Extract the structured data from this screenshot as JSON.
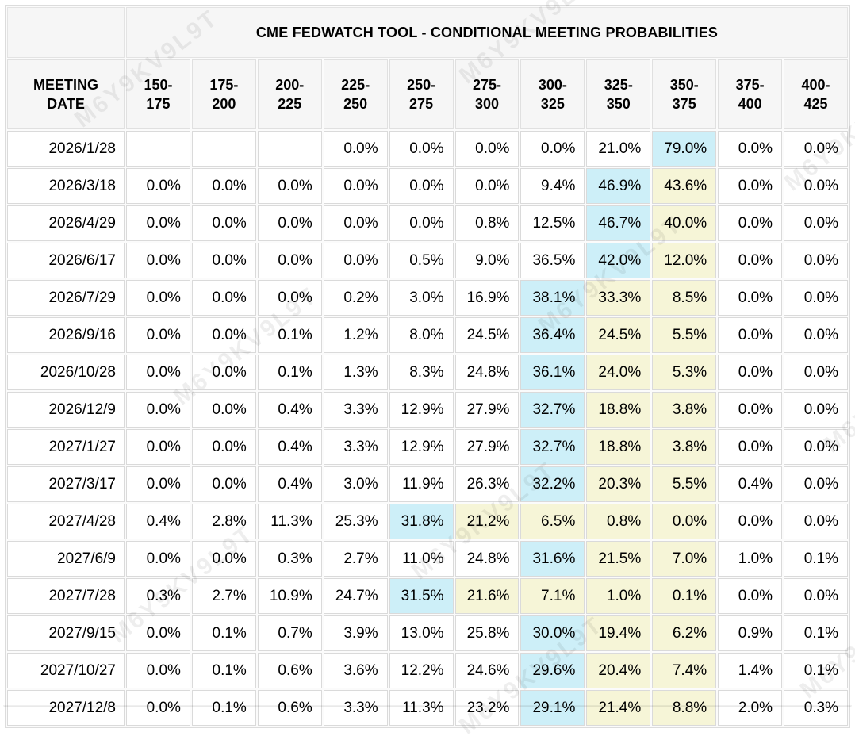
{
  "watermark_text": "M6Y9KV9L9T",
  "colors": {
    "blue_highlight": "#cdeff8",
    "yellow_highlight": "#f6f5d7",
    "header_bg": "#f6f6f6",
    "cell_border": "#dadada",
    "text": "#000000"
  },
  "chart_data": {
    "type": "table",
    "title": "CME FEDWATCH TOOL - CONDITIONAL MEETING PROBABILITIES",
    "row_header": "MEETING DATE",
    "columns": [
      "150-175",
      "175-200",
      "200-225",
      "225-250",
      "250-275",
      "275-300",
      "300-325",
      "325-350",
      "350-375",
      "375-400",
      "400-425"
    ],
    "highlight_legend": {
      "blue": "highest probability cell in row",
      "yellow": "cells to the right of the highest-probability cell through the 350-375 column"
    },
    "rows": [
      {
        "date": "2026/1/28",
        "values": [
          "",
          "",
          "",
          "0.0%",
          "0.0%",
          "0.0%",
          "0.0%",
          "21.0%",
          "79.0%",
          "0.0%",
          "0.0%"
        ],
        "blue": 8,
        "yellow": []
      },
      {
        "date": "2026/3/18",
        "values": [
          "0.0%",
          "0.0%",
          "0.0%",
          "0.0%",
          "0.0%",
          "0.0%",
          "9.4%",
          "46.9%",
          "43.6%",
          "0.0%",
          "0.0%"
        ],
        "blue": 7,
        "yellow": [
          8
        ]
      },
      {
        "date": "2026/4/29",
        "values": [
          "0.0%",
          "0.0%",
          "0.0%",
          "0.0%",
          "0.0%",
          "0.8%",
          "12.5%",
          "46.7%",
          "40.0%",
          "0.0%",
          "0.0%"
        ],
        "blue": 7,
        "yellow": [
          8
        ]
      },
      {
        "date": "2026/6/17",
        "values": [
          "0.0%",
          "0.0%",
          "0.0%",
          "0.0%",
          "0.5%",
          "9.0%",
          "36.5%",
          "42.0%",
          "12.0%",
          "0.0%",
          "0.0%"
        ],
        "blue": 7,
        "yellow": [
          8
        ]
      },
      {
        "date": "2026/7/29",
        "values": [
          "0.0%",
          "0.0%",
          "0.0%",
          "0.2%",
          "3.0%",
          "16.9%",
          "38.1%",
          "33.3%",
          "8.5%",
          "0.0%",
          "0.0%"
        ],
        "blue": 6,
        "yellow": [
          7,
          8
        ]
      },
      {
        "date": "2026/9/16",
        "values": [
          "0.0%",
          "0.0%",
          "0.1%",
          "1.2%",
          "8.0%",
          "24.5%",
          "36.4%",
          "24.5%",
          "5.5%",
          "0.0%",
          "0.0%"
        ],
        "blue": 6,
        "yellow": [
          7,
          8
        ]
      },
      {
        "date": "2026/10/28",
        "values": [
          "0.0%",
          "0.0%",
          "0.1%",
          "1.3%",
          "8.3%",
          "24.8%",
          "36.1%",
          "24.0%",
          "5.3%",
          "0.0%",
          "0.0%"
        ],
        "blue": 6,
        "yellow": [
          7,
          8
        ]
      },
      {
        "date": "2026/12/9",
        "values": [
          "0.0%",
          "0.0%",
          "0.4%",
          "3.3%",
          "12.9%",
          "27.9%",
          "32.7%",
          "18.8%",
          "3.8%",
          "0.0%",
          "0.0%"
        ],
        "blue": 6,
        "yellow": [
          7,
          8
        ]
      },
      {
        "date": "2027/1/27",
        "values": [
          "0.0%",
          "0.0%",
          "0.4%",
          "3.3%",
          "12.9%",
          "27.9%",
          "32.7%",
          "18.8%",
          "3.8%",
          "0.0%",
          "0.0%"
        ],
        "blue": 6,
        "yellow": [
          7,
          8
        ]
      },
      {
        "date": "2027/3/17",
        "values": [
          "0.0%",
          "0.0%",
          "0.4%",
          "3.0%",
          "11.9%",
          "26.3%",
          "32.2%",
          "20.3%",
          "5.5%",
          "0.4%",
          "0.0%"
        ],
        "blue": 6,
        "yellow": [
          7,
          8
        ]
      },
      {
        "date": "2027/4/28",
        "values": [
          "0.4%",
          "2.8%",
          "11.3%",
          "25.3%",
          "31.8%",
          "21.2%",
          "6.5%",
          "0.8%",
          "0.0%",
          "0.0%",
          "0.0%"
        ],
        "blue": 4,
        "yellow": [
          5,
          6,
          7,
          8
        ]
      },
      {
        "date": "2027/6/9",
        "values": [
          "0.0%",
          "0.0%",
          "0.3%",
          "2.7%",
          "11.0%",
          "24.8%",
          "31.6%",
          "21.5%",
          "7.0%",
          "1.0%",
          "0.1%"
        ],
        "blue": 6,
        "yellow": [
          7,
          8
        ]
      },
      {
        "date": "2027/7/28",
        "values": [
          "0.3%",
          "2.7%",
          "10.9%",
          "24.7%",
          "31.5%",
          "21.6%",
          "7.1%",
          "1.0%",
          "0.1%",
          "0.0%",
          "0.0%"
        ],
        "blue": 4,
        "yellow": [
          5,
          6,
          7,
          8
        ]
      },
      {
        "date": "2027/9/15",
        "values": [
          "0.0%",
          "0.1%",
          "0.7%",
          "3.9%",
          "13.0%",
          "25.8%",
          "30.0%",
          "19.4%",
          "6.2%",
          "0.9%",
          "0.1%"
        ],
        "blue": 6,
        "yellow": [
          7,
          8
        ]
      },
      {
        "date": "2027/10/27",
        "values": [
          "0.0%",
          "0.1%",
          "0.6%",
          "3.6%",
          "12.2%",
          "24.6%",
          "29.6%",
          "20.4%",
          "7.4%",
          "1.4%",
          "0.1%"
        ],
        "blue": 6,
        "yellow": [
          7,
          8
        ]
      },
      {
        "date": "2027/12/8",
        "values": [
          "0.0%",
          "0.1%",
          "0.6%",
          "3.3%",
          "11.3%",
          "23.2%",
          "29.1%",
          "21.4%",
          "8.8%",
          "2.0%",
          "0.3%"
        ],
        "blue": 6,
        "yellow": [
          7,
          8
        ]
      }
    ]
  }
}
